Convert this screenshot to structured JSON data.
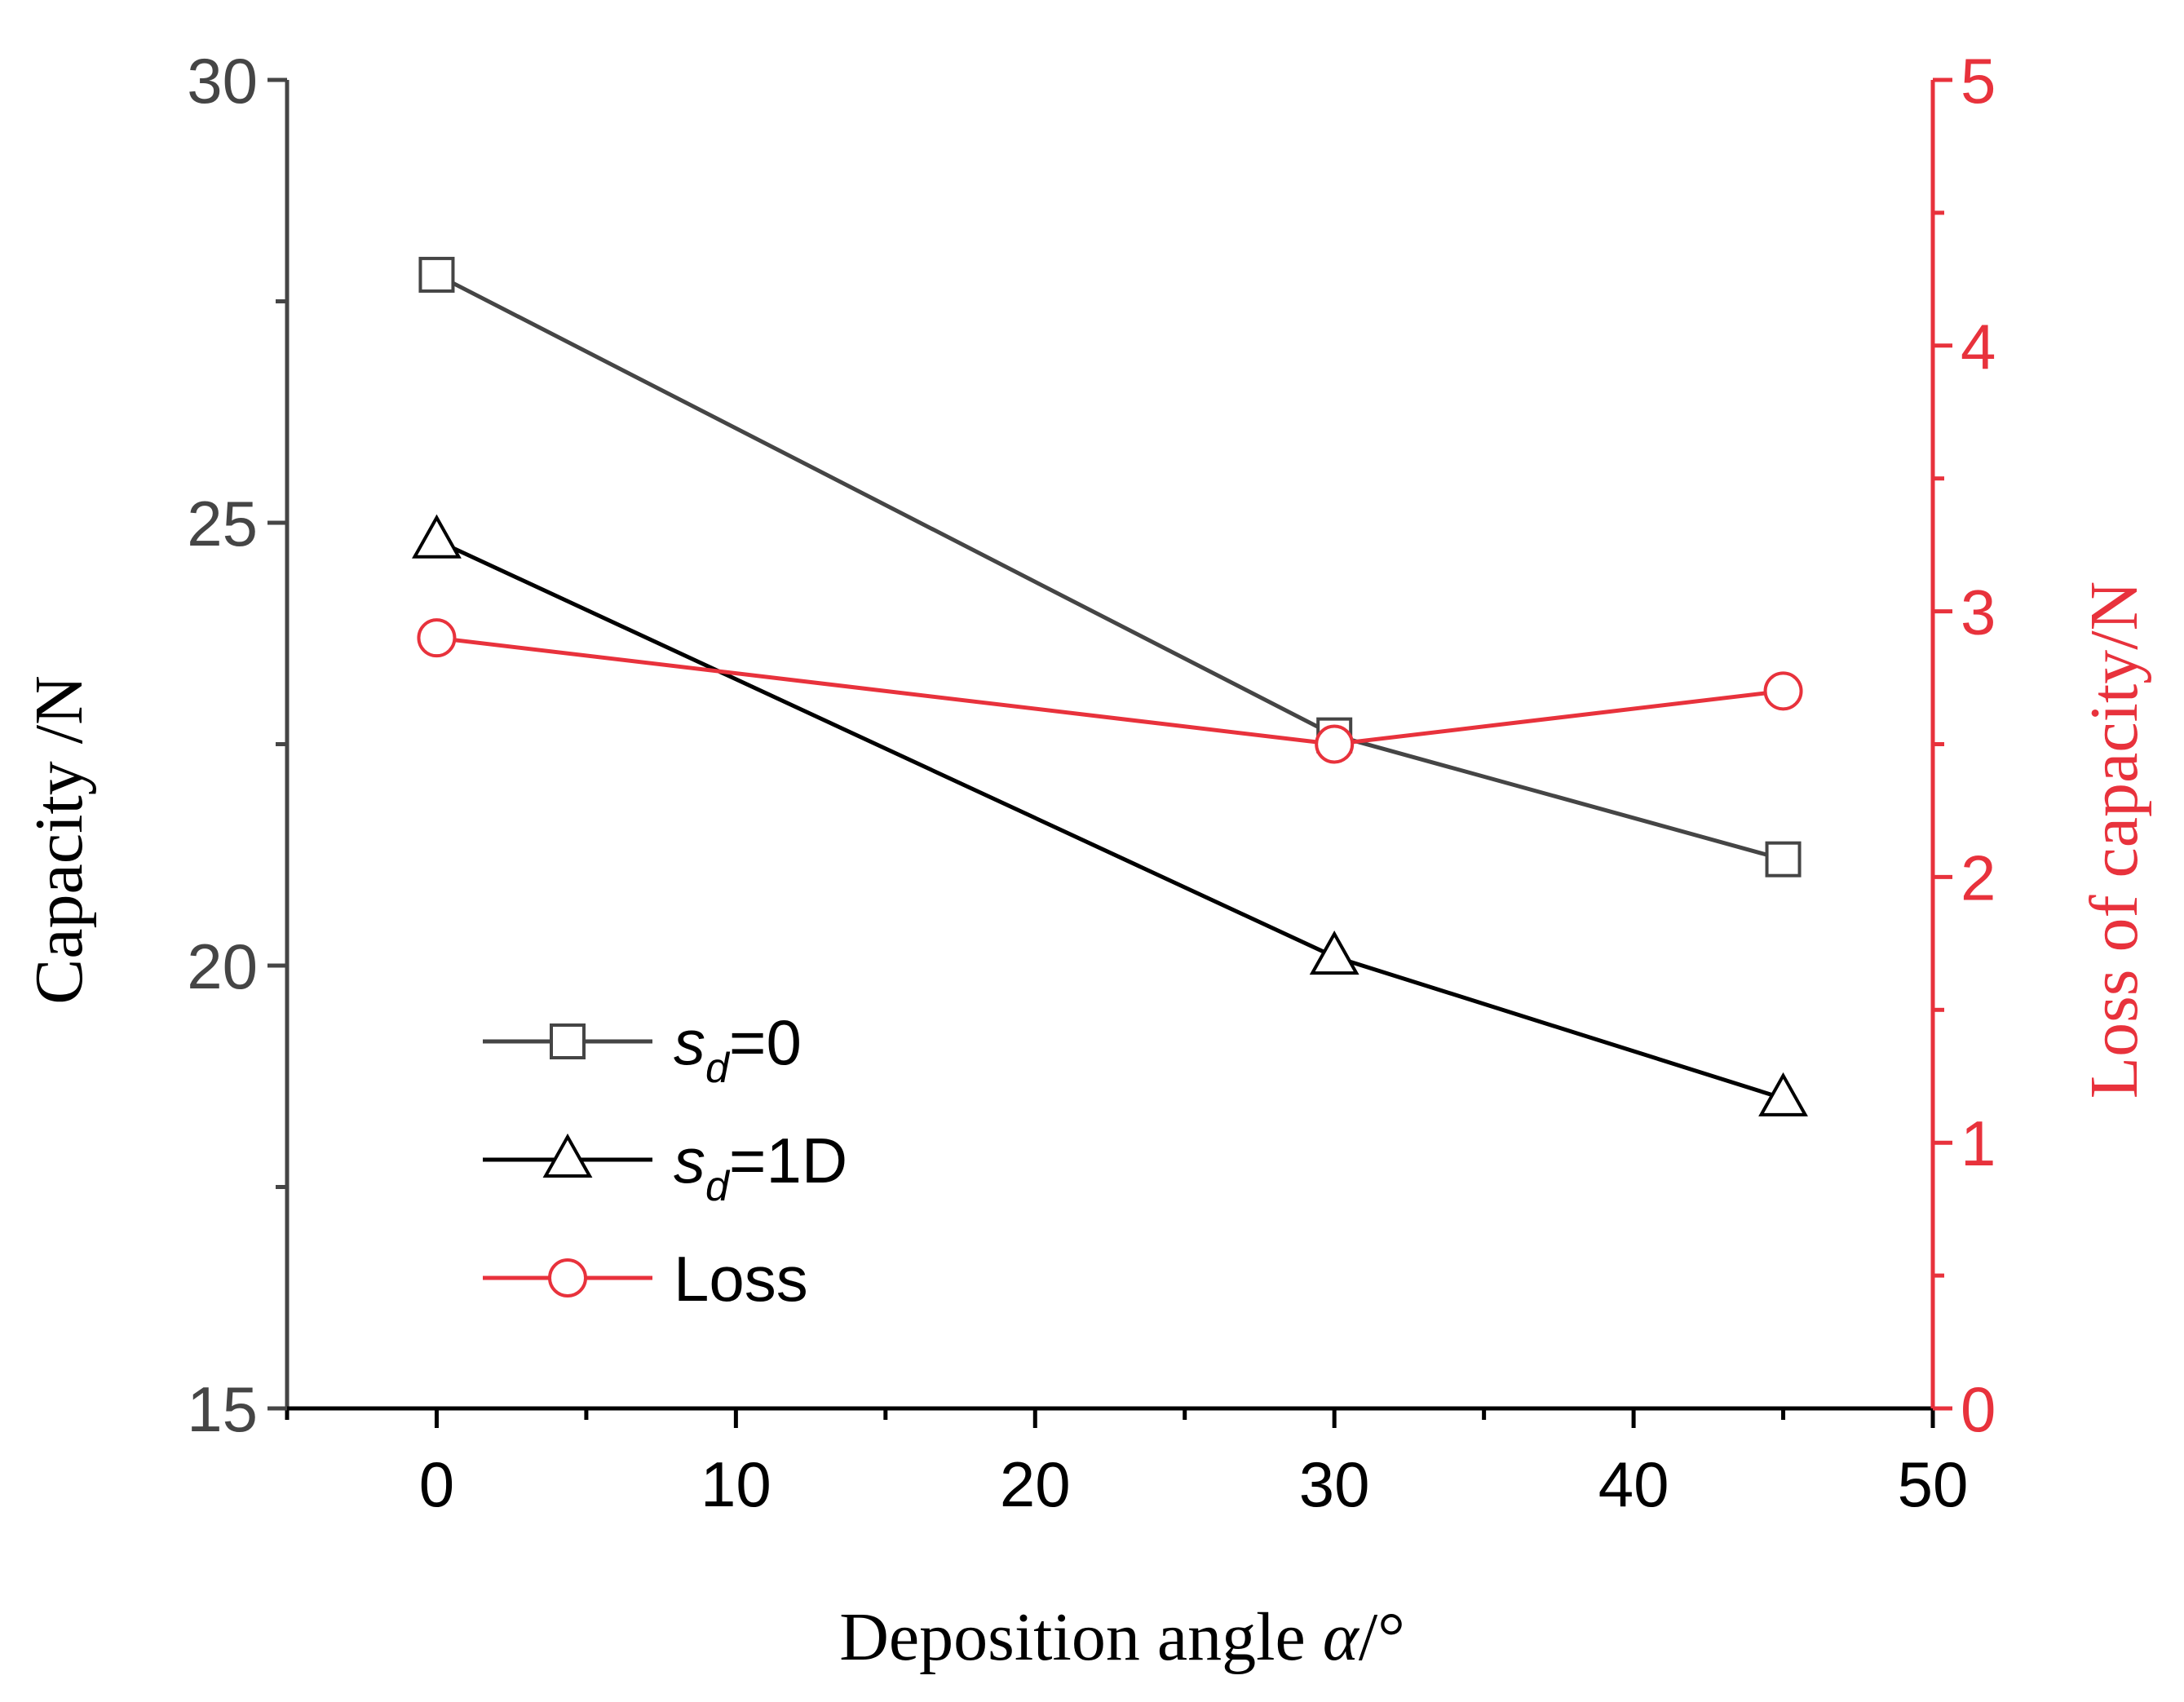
{
  "chart_data": {
    "type": "line",
    "title": "",
    "xlabel": "Deposition angle α/°",
    "xlabel_main": "Deposition angle ",
    "xlabel_symbol": "α",
    "xlabel_unit": "/°",
    "ylabel": "Capacity /N",
    "y2label": "Loss of capacity/N",
    "xlim": [
      -5,
      50
    ],
    "ylim": [
      15,
      30
    ],
    "y2lim": [
      0,
      5
    ],
    "x_ticks": [
      "0",
      "10",
      "20",
      "30",
      "40",
      "50"
    ],
    "x_tick_values": [
      0,
      10,
      20,
      30,
      40,
      50
    ],
    "x_minor_ticks": [
      -5,
      5,
      15,
      25,
      35,
      45
    ],
    "y_ticks": [
      "15",
      "20",
      "25",
      "30"
    ],
    "y_tick_values": [
      15,
      20,
      25,
      30
    ],
    "y_minor_ticks": [
      17.5,
      22.5,
      27.5
    ],
    "y2_ticks": [
      "0",
      "1",
      "2",
      "3",
      "4",
      "5"
    ],
    "y2_tick_values": [
      0,
      1,
      2,
      3,
      4,
      5
    ],
    "y2_minor_ticks": [
      0.5,
      1.5,
      2.5,
      3.5,
      4.5
    ],
    "colors": {
      "dark_gray": "#454545",
      "black": "#000000",
      "red": "#e8323c"
    },
    "series": [
      {
        "name": "s_d=0",
        "label_main": "s",
        "label_sub": "d",
        "label_rest": "=0",
        "axis": "left",
        "marker": "square",
        "color": "#454545",
        "x": [
          0,
          30,
          45
        ],
        "values": [
          27.8,
          22.6,
          21.2
        ]
      },
      {
        "name": "s_d=1D",
        "label_main": "s",
        "label_sub": "d",
        "label_rest": "=1D",
        "axis": "left",
        "marker": "triangle",
        "color": "#000000",
        "x": [
          0,
          30,
          45
        ],
        "values": [
          24.8,
          20.1,
          18.5
        ]
      },
      {
        "name": "Loss",
        "label_main": "Loss",
        "label_sub": "",
        "label_rest": "",
        "axis": "right",
        "marker": "circle",
        "color": "#e8323c",
        "x": [
          0,
          30,
          45
        ],
        "values": [
          2.9,
          2.5,
          2.7
        ]
      }
    ],
    "legend_position": "lower-left"
  }
}
